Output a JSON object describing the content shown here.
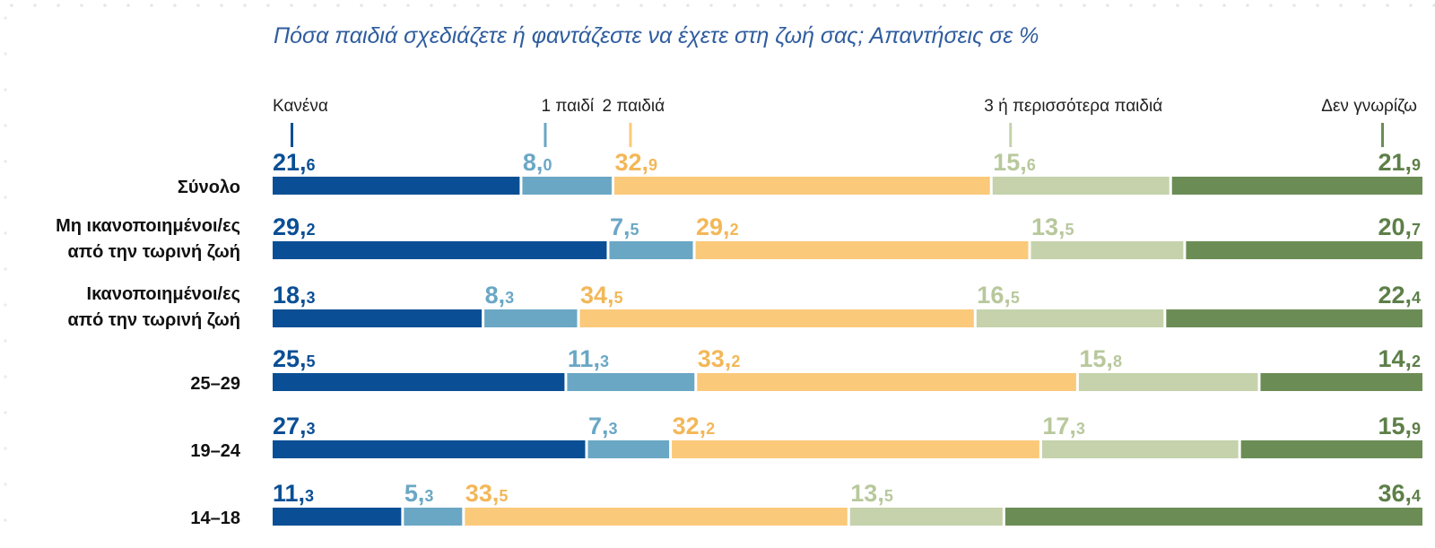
{
  "chart_data": {
    "type": "bar",
    "stacked": true,
    "orientation": "horizontal",
    "title": "Πόσα παιδιά σχεδιάζετε ή φαντάζεστε να έχετε στη ζωή σας; Απαντήσεις σε %",
    "legend_position": "top",
    "categories": [
      [
        "Σύνολο"
      ],
      [
        "Μη ικανοποιημένοι/ες",
        "από την τωρινή ζωή"
      ],
      [
        "Ικανοποιημένοι/ες",
        "από την τωρινή ζωή"
      ],
      [
        "25–29"
      ],
      [
        "19–24"
      ],
      [
        "14–18"
      ]
    ],
    "series": [
      {
        "name": "Κανένα",
        "color": "#0a4f95",
        "label_color": "#0a4f95",
        "values": [
          "21,6",
          "29,2",
          "18,3",
          "25,5",
          "27,3",
          "11,3"
        ]
      },
      {
        "name": "1 παιδί",
        "color": "#6aa7c5",
        "label_color": "#6aa7c5",
        "values": [
          "8,0",
          "7,5",
          "8,3",
          "11,3",
          "7,3",
          "5,3"
        ]
      },
      {
        "name": "2 παιδιά",
        "color": "#fbc97a",
        "label_color": "#f3b758",
        "values": [
          "32,9",
          "29,2",
          "34,5",
          "33,2",
          "32,2",
          "33,5"
        ]
      },
      {
        "name": "3 ή περισσότερα παιδιά",
        "color": "#c5d2ab",
        "label_color": "#b8c89c",
        "values": [
          "15,6",
          "13,5",
          "16,5",
          "15,8",
          "17,3",
          "13,5"
        ]
      },
      {
        "name": "Δεν γνωρίζω",
        "color": "#6b8d55",
        "label_color": "#5d7f48",
        "values": [
          "21,9",
          "20,7",
          "22,4",
          "14,2",
          "15,9",
          "36,4"
        ]
      }
    ]
  }
}
